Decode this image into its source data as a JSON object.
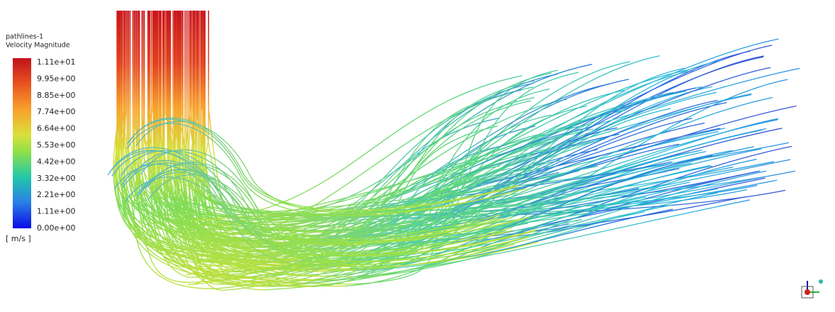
{
  "legend": {
    "title": "pathlines-1",
    "variable": "Velocity Magnitude",
    "ticks": [
      "1.11e+01",
      "9.95e+00",
      "8.85e+00",
      "7.74e+00",
      "6.64e+00",
      "5.53e+00",
      "4.42e+00",
      "3.32e+00",
      "2.21e+00",
      "1.11e+00",
      "0.00e+00"
    ],
    "unit": "[ m/s ]"
  }
}
